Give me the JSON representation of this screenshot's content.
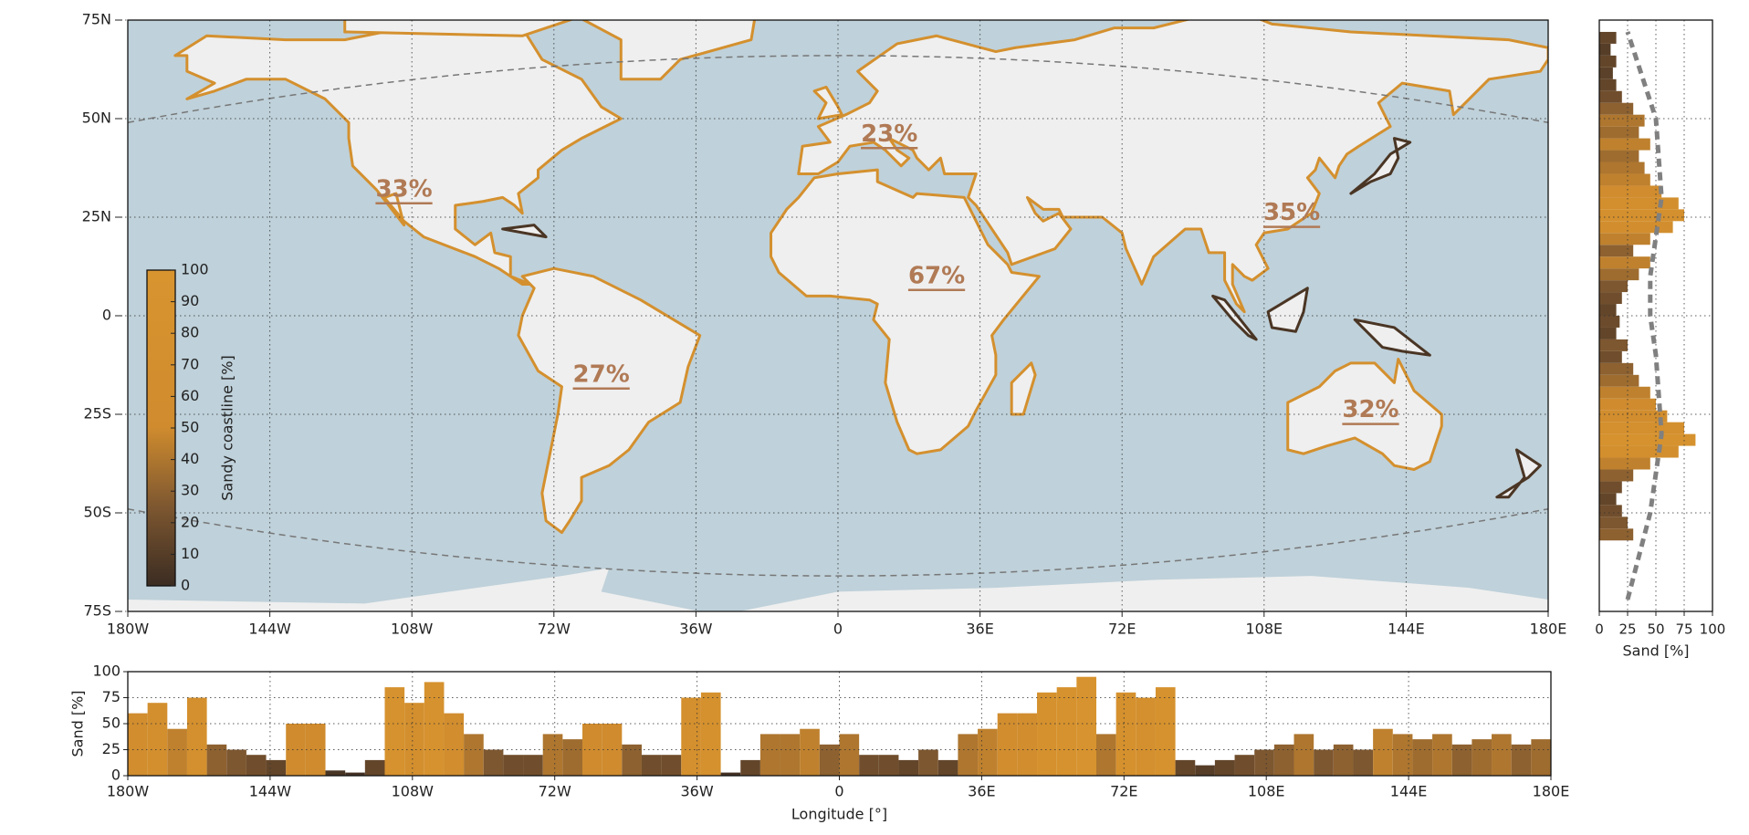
{
  "chart_data": [
    {
      "type": "map",
      "xlim": [
        -180,
        180
      ],
      "ylim": [
        -75,
        75
      ],
      "xticks": [
        {
          "value": -180,
          "label": "180W"
        },
        {
          "value": -144,
          "label": "144W"
        },
        {
          "value": -108,
          "label": "108W"
        },
        {
          "value": -72,
          "label": "72W"
        },
        {
          "value": -36,
          "label": "36W"
        },
        0,
        {
          "value": 36,
          "label": "36E"
        },
        {
          "value": 72,
          "label": "72E"
        },
        {
          "value": 108,
          "label": "108E"
        },
        {
          "value": 144,
          "label": "144E"
        },
        {
          "value": 180,
          "label": "180E"
        }
      ],
      "yticks": [
        {
          "value": -75,
          "label": "75S"
        },
        {
          "value": -50,
          "label": "50S"
        },
        {
          "value": -25,
          "label": "25S"
        },
        0,
        {
          "value": 25,
          "label": "25N"
        },
        {
          "value": 50,
          "label": "50N"
        },
        {
          "value": 75,
          "label": "75N"
        }
      ],
      "grid": true,
      "annotations": [
        "33%",
        "23%",
        "67%",
        "27%",
        "35%",
        "32%"
      ],
      "colorbar": {
        "label": "Sandy coastline [%]",
        "lim": [
          0,
          100
        ],
        "ticks": [
          0,
          10,
          20,
          30,
          40,
          50,
          60,
          70,
          80,
          90,
          100
        ],
        "colors": [
          "#3b2c22",
          "#7d5730",
          "#cf8b2e",
          "#d4902e",
          "#d8942f"
        ]
      }
    },
    {
      "type": "histogram",
      "orientation": "vertical",
      "xlabel": "Longitude [°]",
      "ylabel": "Sand [%]",
      "bins": [
        -180,
        -175,
        -170,
        -165,
        -160,
        -155,
        -150,
        -145,
        -140,
        -135,
        -130,
        -125,
        -120,
        -115,
        -110,
        -105,
        -100,
        -95,
        -90,
        -85,
        -80,
        -75,
        -70,
        -65,
        -60,
        -55,
        -50,
        -45,
        -40,
        -35,
        -30,
        -25,
        -20,
        -15,
        -10,
        -5,
        0,
        5,
        10,
        15,
        20,
        25,
        30,
        35,
        40,
        45,
        50,
        55,
        60,
        65,
        70,
        75,
        80,
        85,
        90,
        95,
        100,
        105,
        110,
        115,
        120,
        125,
        130,
        135,
        140,
        145,
        150,
        155,
        160,
        165,
        170,
        175,
        180
      ],
      "values": [
        60,
        70,
        45,
        75,
        30,
        25,
        20,
        15,
        50,
        50,
        5,
        3,
        15,
        85,
        70,
        90,
        60,
        40,
        25,
        20,
        20,
        40,
        35,
        50,
        50,
        30,
        20,
        20,
        75,
        80,
        3,
        15,
        40,
        40,
        45,
        30,
        40,
        20,
        20,
        15,
        25,
        15,
        40,
        45,
        60,
        60,
        80,
        85,
        95,
        40,
        80,
        75,
        85,
        15,
        10,
        15,
        20,
        25,
        30,
        40,
        25,
        30,
        25,
        45,
        40,
        35,
        40,
        30,
        35,
        40,
        30,
        35
      ],
      "xlim": [
        -180,
        180
      ],
      "ylim": [
        0,
        100
      ],
      "xticks": [
        {
          "value": -180,
          "label": "180W"
        },
        {
          "value": -144,
          "label": "144W"
        },
        {
          "value": -108,
          "label": "108W"
        },
        {
          "value": -72,
          "label": "72W"
        },
        {
          "value": -36,
          "label": "36W"
        },
        0,
        {
          "value": 36,
          "label": "36E"
        },
        {
          "value": 72,
          "label": "72E"
        },
        {
          "value": 108,
          "label": "108E"
        },
        {
          "value": 144,
          "label": "144E"
        },
        {
          "value": 180,
          "label": "180E"
        }
      ],
      "yticks": [
        0,
        25,
        50,
        75,
        100
      ],
      "grid": true
    },
    {
      "type": "histogram",
      "orientation": "horizontal",
      "xlabel": "Sand [%]",
      "bins": [
        -57,
        -54,
        -51,
        -48,
        -45,
        -42,
        -39,
        -36,
        -33,
        -30,
        -27,
        -24,
        -21,
        -18,
        -15,
        -12,
        -9,
        -6,
        -3,
        0,
        3,
        6,
        9,
        12,
        15,
        18,
        21,
        24,
        27,
        30,
        33,
        36,
        39,
        42,
        45,
        48,
        51,
        54,
        57,
        60,
        63,
        66,
        69,
        72
      ],
      "values": [
        30,
        25,
        20,
        15,
        20,
        30,
        45,
        70,
        85,
        75,
        60,
        50,
        45,
        35,
        30,
        20,
        25,
        15,
        18,
        15,
        20,
        25,
        35,
        45,
        30,
        45,
        65,
        75,
        70,
        55,
        45,
        40,
        35,
        45,
        35,
        40,
        30,
        20,
        15,
        12,
        15,
        10,
        15
      ],
      "xlim": [
        0,
        100
      ],
      "ylim": [
        -75,
        75
      ],
      "xticks": [
        0,
        25,
        50,
        75,
        100
      ],
      "grid": true,
      "curve": {
        "lat": [
          -72,
          -50,
          -30,
          -10,
          0,
          10,
          30,
          50,
          72
        ],
        "sand": [
          25,
          45,
          55,
          50,
          45,
          45,
          55,
          50,
          25
        ],
        "color": "#808080"
      }
    }
  ]
}
